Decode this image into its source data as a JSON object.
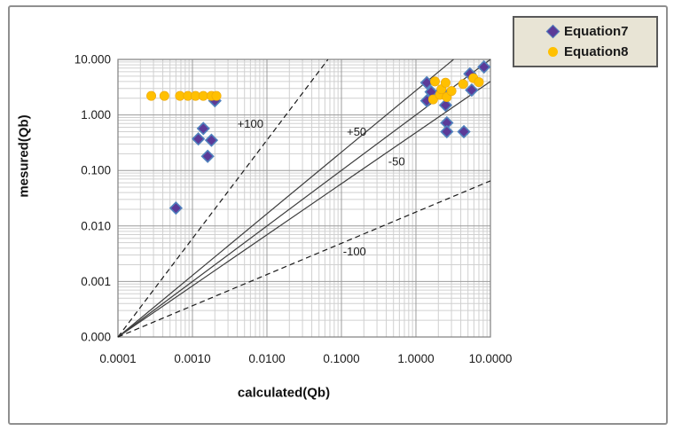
{
  "chart_data": {
    "type": "scatter",
    "title": "",
    "xlabel": "calculated(Qb)",
    "ylabel": "mesured(Qb)",
    "x_scale": "log",
    "y_scale": "log",
    "xlim": [
      0.0001,
      10
    ],
    "ylim": [
      0.0001,
      10
    ],
    "grid": "log major and minor gridlines, both axes",
    "x_ticks": [
      "0.0001",
      "0.0010",
      "0.0100",
      "0.1000",
      "1.0000",
      "10.0000"
    ],
    "y_ticks": [
      "10.000",
      "1.000",
      "0.100",
      "0.010",
      "0.001",
      "0.000"
    ],
    "legend_position": "top-right",
    "series": [
      {
        "name": "Equation7",
        "marker": "diamond",
        "fill": "#5b3a98",
        "stroke": "#4f81bd",
        "points": [
          [
            0.0006,
            0.021
          ],
          [
            0.0012,
            0.37
          ],
          [
            0.0014,
            0.57
          ],
          [
            0.0016,
            0.18
          ],
          [
            0.0018,
            0.35
          ],
          [
            0.002,
            1.8
          ],
          [
            1.4,
            3.8
          ],
          [
            1.6,
            2.6
          ],
          [
            1.4,
            1.8
          ],
          [
            2.2,
            2.7
          ],
          [
            2.5,
            1.5
          ],
          [
            2.6,
            0.72
          ],
          [
            2.6,
            0.5
          ],
          [
            4.4,
            0.5
          ],
          [
            5.3,
            5.5
          ],
          [
            5.6,
            2.8
          ],
          [
            8.2,
            7.3
          ]
        ]
      },
      {
        "name": "Equation8",
        "marker": "circle",
        "fill": "#ffc000",
        "stroke": "#eda70a",
        "points": [
          [
            0.00028,
            2.2
          ],
          [
            0.00042,
            2.2
          ],
          [
            0.00068,
            2.2
          ],
          [
            0.00087,
            2.2
          ],
          [
            0.0011,
            2.2
          ],
          [
            0.0014,
            2.2
          ],
          [
            0.0018,
            2.2
          ],
          [
            0.0021,
            2.2
          ],
          [
            1.7,
            1.9
          ],
          [
            1.8,
            4.0
          ],
          [
            2.1,
            2.3
          ],
          [
            2.2,
            2.9
          ],
          [
            2.5,
            3.8
          ],
          [
            2.6,
            2.1
          ],
          [
            3.0,
            2.7
          ],
          [
            4.3,
            3.6
          ],
          [
            5.9,
            4.6
          ],
          [
            7.0,
            3.9
          ]
        ]
      }
    ],
    "reference_lines": [
      {
        "label": "+100",
        "style": "dashed",
        "from": [
          0.0001,
          0.0001
        ],
        "to": [
          0.066,
          10
        ],
        "label_at": [
          0.006,
          0.7
        ]
      },
      {
        "label": "+50",
        "style": "solid",
        "from": [
          0.0001,
          0.0001
        ],
        "to": [
          3.2,
          10
        ],
        "label_at": [
          0.16,
          0.5
        ]
      },
      {
        "label": "",
        "style": "solid",
        "from": [
          0.0001,
          0.0001
        ],
        "to": [
          10,
          10
        ],
        "label_at": null
      },
      {
        "label": "-50",
        "style": "solid",
        "from": [
          0.0001,
          0.0001
        ],
        "to": [
          10,
          4.0
        ],
        "label_at": [
          0.55,
          0.145
        ]
      },
      {
        "label": "-100",
        "style": "dashed",
        "from": [
          0.0001,
          0.0001
        ],
        "to": [
          10,
          0.065
        ],
        "label_at": [
          0.15,
          0.0035
        ]
      }
    ],
    "colors": {
      "grid_minor": "#d0d0d0",
      "grid_major": "#9c9c9c",
      "plot_border": "#7f7f7f",
      "solid_line": "#3d3d3d",
      "dashed_line": "#1a1a1a",
      "tick_text": "#1a1a1a",
      "legend_bg": "#e8e4d5",
      "legend_border": "#595959"
    }
  },
  "legend": {
    "items": [
      {
        "label": "Equation7"
      },
      {
        "label": "Equation8"
      }
    ]
  }
}
